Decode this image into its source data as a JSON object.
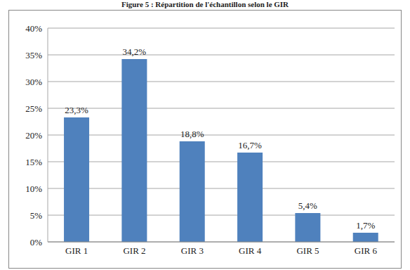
{
  "chart_data": {
    "type": "bar",
    "title": "Figure 5 : Répartition de l'échantillon selon le GIR",
    "categories": [
      "GIR 1",
      "GIR 2",
      "GIR 3",
      "GIR 4",
      "GIR 5",
      "GIR 6"
    ],
    "values": [
      23.3,
      34.2,
      18.8,
      16.7,
      5.4,
      1.7
    ],
    "value_labels": [
      "23,3%",
      "34,2%",
      "18,8%",
      "16,7%",
      "5,4%",
      "1,7%"
    ],
    "data_labels": true,
    "color": "#4f81bd",
    "ylim": [
      0,
      40
    ],
    "yticks": [
      {
        "value": 0,
        "label": "0%"
      },
      {
        "value": 5,
        "label": "5%"
      },
      {
        "value": 10,
        "label": "10%"
      },
      {
        "value": 15,
        "label": "15%"
      },
      {
        "value": 20,
        "label": "20%"
      },
      {
        "value": 25,
        "label": "25%"
      },
      {
        "value": 30,
        "label": "30%"
      },
      {
        "value": 35,
        "label": "35%"
      },
      {
        "value": 40,
        "label": "40%"
      }
    ],
    "grid": true
  }
}
